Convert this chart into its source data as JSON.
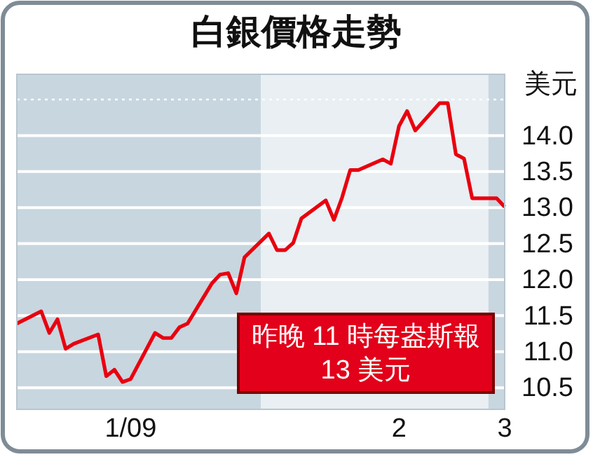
{
  "chart_data": {
    "type": "line",
    "title": "白銀價格走勢",
    "ylabel": "美元",
    "x": [
      "2009-01-02",
      "2009-01-05",
      "2009-01-06",
      "2009-01-07",
      "2009-01-08",
      "2009-01-09",
      "2009-01-12",
      "2009-01-13",
      "2009-01-14",
      "2009-01-15",
      "2009-01-16",
      "2009-01-19",
      "2009-01-20",
      "2009-01-21",
      "2009-01-22",
      "2009-01-23",
      "2009-01-26",
      "2009-01-27",
      "2009-01-28",
      "2009-01-29",
      "2009-01-30",
      "2009-02-02",
      "2009-02-03",
      "2009-02-04",
      "2009-02-05",
      "2009-02-06",
      "2009-02-09",
      "2009-02-10",
      "2009-02-11",
      "2009-02-12",
      "2009-02-13",
      "2009-02-16",
      "2009-02-17",
      "2009-02-18",
      "2009-02-19",
      "2009-02-20",
      "2009-02-23",
      "2009-02-24",
      "2009-02-25",
      "2009-02-26",
      "2009-02-27",
      "2009-03-02",
      "2009-03-03"
    ],
    "series": [
      {
        "color": "#e8000f",
        "values": [
          11.39,
          11.56,
          11.26,
          11.45,
          11.04,
          11.11,
          11.24,
          10.66,
          10.75,
          10.58,
          10.62,
          11.26,
          11.19,
          11.19,
          11.34,
          11.39,
          11.95,
          12.07,
          12.09,
          11.81,
          12.31,
          12.64,
          12.41,
          12.41,
          12.51,
          12.85,
          13.1,
          12.83,
          13.14,
          13.52,
          13.52,
          13.67,
          13.61,
          14.13,
          14.34,
          14.07,
          14.45,
          14.45,
          13.74,
          13.68,
          13.13,
          13.13,
          13.01
        ]
      }
    ],
    "xlim": [
      "2009-01-02",
      "2009-03-03"
    ],
    "xticks": [
      {
        "value": "2009-01-16",
        "label": "1/09"
      },
      {
        "value": "2009-02-18",
        "label": "2"
      },
      {
        "value": "2009-03-03",
        "label": "3"
      }
    ],
    "ylim": [
      10.2,
      14.85
    ],
    "yticks": [
      10.5,
      {
        "value": 11.0,
        "label": "11.0"
      },
      11.5,
      {
        "value": 12.0,
        "label": "12.0"
      },
      12.5,
      {
        "value": 13.0,
        "label": "13.0"
      },
      13.5,
      {
        "value": 14.0,
        "label": "14.0"
      }
    ],
    "grid": "y",
    "marker": "none",
    "line_style": "solid",
    "ref_lines": [
      {
        "axis": "y",
        "value": 14.5,
        "color": "#ffffff",
        "line_style": "dotted"
      }
    ],
    "bands": [
      {
        "axis": "x",
        "from": "2009-01-02",
        "to": "2009-02-01",
        "color": "#c8d6df"
      },
      {
        "axis": "x",
        "from": "2009-02-01",
        "to": "2009-03-01",
        "color": "#e9eff3"
      },
      {
        "axis": "x",
        "from": "2009-03-01",
        "to": "2009-03-03",
        "color": "#c8d6df"
      }
    ],
    "annotations": [
      "昨晚 11 時每盎斯報 13 美元"
    ]
  }
}
